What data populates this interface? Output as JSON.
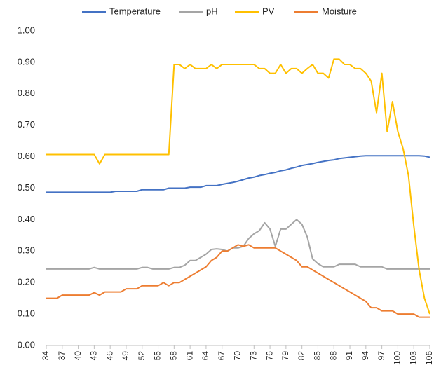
{
  "chart_data": {
    "type": "line",
    "x": [
      34,
      35,
      36,
      37,
      38,
      39,
      40,
      41,
      42,
      43,
      44,
      45,
      46,
      47,
      48,
      49,
      50,
      51,
      52,
      53,
      54,
      55,
      56,
      57,
      58,
      59,
      60,
      61,
      62,
      63,
      64,
      65,
      66,
      67,
      68,
      69,
      70,
      71,
      72,
      73,
      74,
      75,
      76,
      77,
      78,
      79,
      80,
      81,
      82,
      83,
      84,
      85,
      86,
      87,
      88,
      89,
      90,
      91,
      92,
      93,
      94,
      95,
      96,
      97,
      98,
      99,
      100,
      101,
      102,
      103,
      104,
      105,
      106
    ],
    "xlim": [
      34,
      106
    ],
    "xticks": [
      34,
      37,
      40,
      43,
      46,
      49,
      52,
      55,
      58,
      61,
      64,
      67,
      70,
      73,
      76,
      79,
      82,
      85,
      88,
      91,
      94,
      97,
      100,
      103,
      106
    ],
    "ylim": [
      0,
      1
    ],
    "yticks": [
      {
        "value": 0,
        "label": "0.00"
      },
      {
        "value": 0.1,
        "label": "0.10"
      },
      {
        "value": 0.2,
        "label": "0.20"
      },
      {
        "value": 0.3,
        "label": "0.30"
      },
      {
        "value": 0.4,
        "label": "0.40"
      },
      {
        "value": 0.5,
        "label": "0.50"
      },
      {
        "value": 0.6,
        "label": "0.60"
      },
      {
        "value": 0.7,
        "label": "0.70"
      },
      {
        "value": 0.8,
        "label": "0.80"
      },
      {
        "value": 0.9,
        "label": "0.90"
      },
      {
        "value": 1,
        "label": "1.00"
      }
    ],
    "grid": false,
    "legend": "top",
    "series": [
      {
        "name": "Temperature",
        "color": "#4472c4",
        "values": [
          0.487,
          0.487,
          0.487,
          0.487,
          0.487,
          0.487,
          0.487,
          0.487,
          0.487,
          0.487,
          0.487,
          0.487,
          0.487,
          0.49,
          0.49,
          0.49,
          0.49,
          0.49,
          0.495,
          0.495,
          0.495,
          0.495,
          0.495,
          0.5,
          0.5,
          0.5,
          0.5,
          0.503,
          0.503,
          0.503,
          0.508,
          0.508,
          0.508,
          0.512,
          0.515,
          0.518,
          0.522,
          0.527,
          0.532,
          0.535,
          0.54,
          0.543,
          0.547,
          0.55,
          0.555,
          0.558,
          0.563,
          0.567,
          0.572,
          0.575,
          0.578,
          0.582,
          0.585,
          0.588,
          0.59,
          0.594,
          0.596,
          0.598,
          0.6,
          0.602,
          0.603,
          0.603,
          0.603,
          0.603,
          0.603,
          0.603,
          0.603,
          0.603,
          0.603,
          0.603,
          0.603,
          0.602,
          0.598
        ]
      },
      {
        "name": "pH",
        "color": "#a5a5a5",
        "values": [
          0.243,
          0.243,
          0.243,
          0.243,
          0.243,
          0.243,
          0.243,
          0.243,
          0.243,
          0.248,
          0.243,
          0.243,
          0.243,
          0.243,
          0.243,
          0.243,
          0.243,
          0.243,
          0.248,
          0.248,
          0.243,
          0.243,
          0.243,
          0.243,
          0.248,
          0.248,
          0.255,
          0.27,
          0.27,
          0.28,
          0.29,
          0.305,
          0.307,
          0.305,
          0.3,
          0.31,
          0.31,
          0.315,
          0.34,
          0.355,
          0.365,
          0.39,
          0.37,
          0.315,
          0.37,
          0.37,
          0.385,
          0.4,
          0.385,
          0.345,
          0.275,
          0.26,
          0.25,
          0.25,
          0.25,
          0.258,
          0.258,
          0.258,
          0.258,
          0.25,
          0.25,
          0.25,
          0.25,
          0.25,
          0.243,
          0.243,
          0.243,
          0.243,
          0.243,
          0.243,
          0.243,
          0.243,
          0.243
        ]
      },
      {
        "name": "PV",
        "color": "#ffc000",
        "values": [
          0.607,
          0.607,
          0.607,
          0.607,
          0.607,
          0.607,
          0.607,
          0.607,
          0.607,
          0.607,
          0.577,
          0.607,
          0.607,
          0.607,
          0.607,
          0.607,
          0.607,
          0.607,
          0.607,
          0.607,
          0.607,
          0.607,
          0.607,
          0.607,
          0.893,
          0.893,
          0.88,
          0.893,
          0.88,
          0.88,
          0.88,
          0.893,
          0.88,
          0.893,
          0.893,
          0.893,
          0.893,
          0.893,
          0.893,
          0.893,
          0.88,
          0.88,
          0.865,
          0.865,
          0.893,
          0.865,
          0.88,
          0.88,
          0.865,
          0.88,
          0.893,
          0.865,
          0.865,
          0.85,
          0.91,
          0.91,
          0.893,
          0.893,
          0.88,
          0.88,
          0.865,
          0.84,
          0.74,
          0.865,
          0.68,
          0.775,
          0.68,
          0.625,
          0.54,
          0.38,
          0.24,
          0.15,
          0.1
        ]
      },
      {
        "name": "Moisture",
        "color": "#ed7d31",
        "values": [
          0.15,
          0.15,
          0.15,
          0.16,
          0.16,
          0.16,
          0.16,
          0.16,
          0.16,
          0.168,
          0.16,
          0.17,
          0.17,
          0.17,
          0.17,
          0.18,
          0.18,
          0.18,
          0.19,
          0.19,
          0.19,
          0.19,
          0.2,
          0.19,
          0.2,
          0.2,
          0.21,
          0.22,
          0.23,
          0.24,
          0.25,
          0.27,
          0.28,
          0.3,
          0.3,
          0.31,
          0.32,
          0.315,
          0.32,
          0.31,
          0.31,
          0.31,
          0.31,
          0.31,
          0.3,
          0.29,
          0.28,
          0.27,
          0.25,
          0.25,
          0.24,
          0.23,
          0.22,
          0.21,
          0.2,
          0.19,
          0.18,
          0.17,
          0.16,
          0.15,
          0.14,
          0.12,
          0.12,
          0.11,
          0.11,
          0.11,
          0.1,
          0.1,
          0.1,
          0.1,
          0.09,
          0.09,
          0.09
        ]
      }
    ]
  }
}
